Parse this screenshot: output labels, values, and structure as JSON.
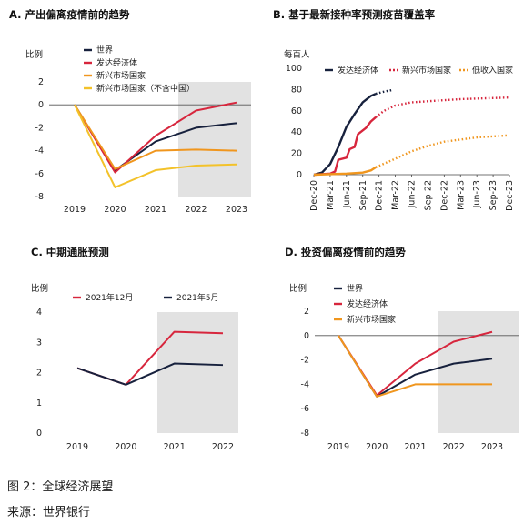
{
  "chart_data": [
    {
      "type": "line",
      "title": "A. 产出偏离疫情前的趋势",
      "ylabel": "比例",
      "categories": [
        "2019",
        "2020",
        "2021",
        "2022",
        "2023"
      ],
      "ylim": [
        -8,
        2
      ],
      "yticks": [
        2,
        0,
        -2,
        -4,
        -6,
        -8
      ],
      "shaded_from": "2021.5",
      "series": [
        {
          "name": "世界",
          "color": "#17213d",
          "values": [
            0,
            -5.7,
            -3.2,
            -2.0,
            -1.6
          ]
        },
        {
          "name": "发达经济体",
          "color": "#d7263d",
          "values": [
            0,
            -5.9,
            -2.7,
            -0.5,
            0.2
          ]
        },
        {
          "name": "新兴市场国家",
          "color": "#f0961e",
          "values": [
            0,
            -5.6,
            -4.0,
            -3.9,
            -4.0
          ]
        },
        {
          "name": "新兴市场国家（不含中国）",
          "color": "#f3c22a",
          "values": [
            0,
            -7.2,
            -5.7,
            -5.3,
            -5.2
          ]
        }
      ]
    },
    {
      "type": "line",
      "title": "B. 基于最新接种率预测疫苗覆盖率",
      "ylabel": "每百人",
      "categories": [
        "Dec-20",
        "Mar-21",
        "Jun-21",
        "Sep-21",
        "Dec-21",
        "Mar-22",
        "Jun-22",
        "Sep-22",
        "Dec-22",
        "Mar-23",
        "Jun-23",
        "Sep-23",
        "Dec-23"
      ],
      "ylim": [
        0,
        100
      ],
      "yticks": [
        100,
        80,
        60,
        40,
        20,
        0
      ],
      "series": [
        {
          "name": "发达经济体",
          "color": "#17213d",
          "actual": [
            [
              0,
              0
            ],
            [
              0.5,
              2
            ],
            [
              1,
              10
            ],
            [
              1.5,
              26
            ],
            [
              2,
              45
            ],
            [
              2.5,
              57
            ],
            [
              3,
              68
            ],
            [
              3.5,
              74
            ],
            [
              3.8,
              76
            ]
          ],
          "projected": [
            [
              3.8,
              76
            ],
            [
              4.3,
              78
            ],
            [
              4.8,
              79.5
            ]
          ]
        },
        {
          "name": "新兴市场国家",
          "color": "#d7263d",
          "actual": [
            [
              0,
              0
            ],
            [
              1,
              1
            ],
            [
              1.3,
              3
            ],
            [
              1.5,
              14
            ],
            [
              2,
              16
            ],
            [
              2.2,
              24
            ],
            [
              2.5,
              26
            ],
            [
              2.7,
              38
            ],
            [
              3.2,
              44
            ],
            [
              3.5,
              50
            ],
            [
              3.8,
              54
            ]
          ],
          "projected": [
            [
              3.8,
              54
            ],
            [
              4.3,
              60
            ],
            [
              5,
              65
            ],
            [
              6,
              68
            ],
            [
              7,
              69
            ],
            [
              8,
              70
            ],
            [
              9,
              71
            ],
            [
              10,
              71.5
            ],
            [
              11,
              72
            ],
            [
              12,
              72.5
            ]
          ]
        },
        {
          "name": "低收入国家",
          "color": "#f0961e",
          "actual": [
            [
              0,
              0
            ],
            [
              2,
              1
            ],
            [
              3,
              2
            ],
            [
              3.5,
              4
            ],
            [
              3.8,
              7
            ]
          ],
          "projected": [
            [
              3.8,
              7
            ],
            [
              5,
              15
            ],
            [
              6,
              22
            ],
            [
              7,
              27
            ],
            [
              8,
              31
            ],
            [
              9,
              33
            ],
            [
              10,
              35
            ],
            [
              11,
              36
            ],
            [
              12,
              37
            ]
          ]
        }
      ]
    },
    {
      "type": "line",
      "title": "C. 中期通胀预测",
      "ylabel": "比例",
      "categories": [
        "2019",
        "2020",
        "2021",
        "2022"
      ],
      "ylim": [
        0,
        4
      ],
      "yticks": [
        4,
        3,
        2,
        1,
        0
      ],
      "shaded_from": "2021",
      "series": [
        {
          "name": "2021年12月",
          "color": "#d7263d",
          "values": [
            2.15,
            1.6,
            3.35,
            3.3
          ]
        },
        {
          "name": "2021年5月",
          "color": "#17213d",
          "values": [
            2.15,
            1.6,
            2.3,
            2.25
          ]
        }
      ]
    },
    {
      "type": "line",
      "title": "D. 投资偏离疫情前的趋势",
      "ylabel": "比例",
      "categories": [
        "2019",
        "2020",
        "2021",
        "2022",
        "2023"
      ],
      "ylim": [
        -8,
        2
      ],
      "yticks": [
        2,
        0,
        -2,
        -4,
        -6,
        -8
      ],
      "shaded_from": "2021.5",
      "series": [
        {
          "name": "世界",
          "color": "#17213d",
          "values": [
            0,
            -5.0,
            -3.2,
            -2.3,
            -1.9
          ]
        },
        {
          "name": "发达经济体",
          "color": "#d7263d",
          "values": [
            0,
            -4.9,
            -2.3,
            -0.5,
            0.3
          ]
        },
        {
          "name": "新兴市场国家",
          "color": "#f0961e",
          "values": [
            0,
            -5.0,
            -4.0,
            -4.0,
            -4.0
          ]
        }
      ]
    }
  ],
  "caption": {
    "figure": "图 2：全球经济展望",
    "source": "来源：世界银行"
  }
}
